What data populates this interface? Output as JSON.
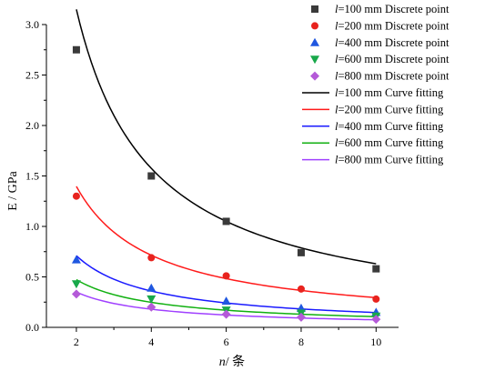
{
  "chart_data": {
    "type": "scatter",
    "xlabel_var": "n",
    "xlabel_unit": "/ 条",
    "ylabel": "E / GPa",
    "xlim": [
      1.2,
      10.6
    ],
    "ylim": [
      0,
      3.0
    ],
    "xticks": [
      2,
      4,
      6,
      8,
      10
    ],
    "yticks": [
      0.0,
      0.5,
      1.0,
      1.5,
      2.0,
      2.5,
      3.0
    ],
    "ytick_labels": [
      "0.0",
      "0.5",
      "1.0",
      "1.5",
      "2.0",
      "2.5",
      "3.0"
    ],
    "grid": false,
    "legend_position": "top-right",
    "x": [
      2,
      4,
      6,
      8,
      10
    ],
    "series": [
      {
        "name": "l=100 mm Discrete point",
        "kind": "points",
        "marker": "square",
        "color": "#3a3a3a",
        "values": [
          2.75,
          1.5,
          1.05,
          0.74,
          0.58
        ]
      },
      {
        "name": "l=200 mm Discrete point",
        "kind": "points",
        "marker": "circle",
        "color": "#e8231e",
        "values": [
          1.3,
          0.69,
          0.51,
          0.38,
          0.28
        ]
      },
      {
        "name": "l=400 mm Discrete point",
        "kind": "points",
        "marker": "triangle-up",
        "color": "#1f57e0",
        "values": [
          0.67,
          0.39,
          0.26,
          0.19,
          0.15
        ]
      },
      {
        "name": "l=600 mm Discrete point",
        "kind": "points",
        "marker": "triangle-down",
        "color": "#18a84a",
        "values": [
          0.43,
          0.28,
          0.17,
          0.14,
          0.11
        ]
      },
      {
        "name": "l=800 mm Discrete point",
        "kind": "points",
        "marker": "diamond",
        "color": "#b45ad8",
        "values": [
          0.33,
          0.2,
          0.13,
          0.1,
          0.08
        ]
      },
      {
        "name": "l=100 mm Curve fitting",
        "kind": "curve",
        "color": "#000000",
        "a": 6.3,
        "b": 1.0
      },
      {
        "name": "l=200 mm Curve fitting",
        "kind": "curve",
        "color": "#ff1a1a",
        "a": 2.73,
        "b": 0.967
      },
      {
        "name": "l=400 mm Curve fitting",
        "kind": "curve",
        "color": "#1a1aff",
        "a": 1.4,
        "b": 0.98
      },
      {
        "name": "l=600 mm Curve fitting",
        "kind": "curve",
        "color": "#10b010",
        "a": 0.9,
        "b": 0.93
      },
      {
        "name": "l=800 mm Curve fitting",
        "kind": "curve",
        "color": "#a040ff",
        "a": 0.68,
        "b": 0.96
      }
    ]
  }
}
